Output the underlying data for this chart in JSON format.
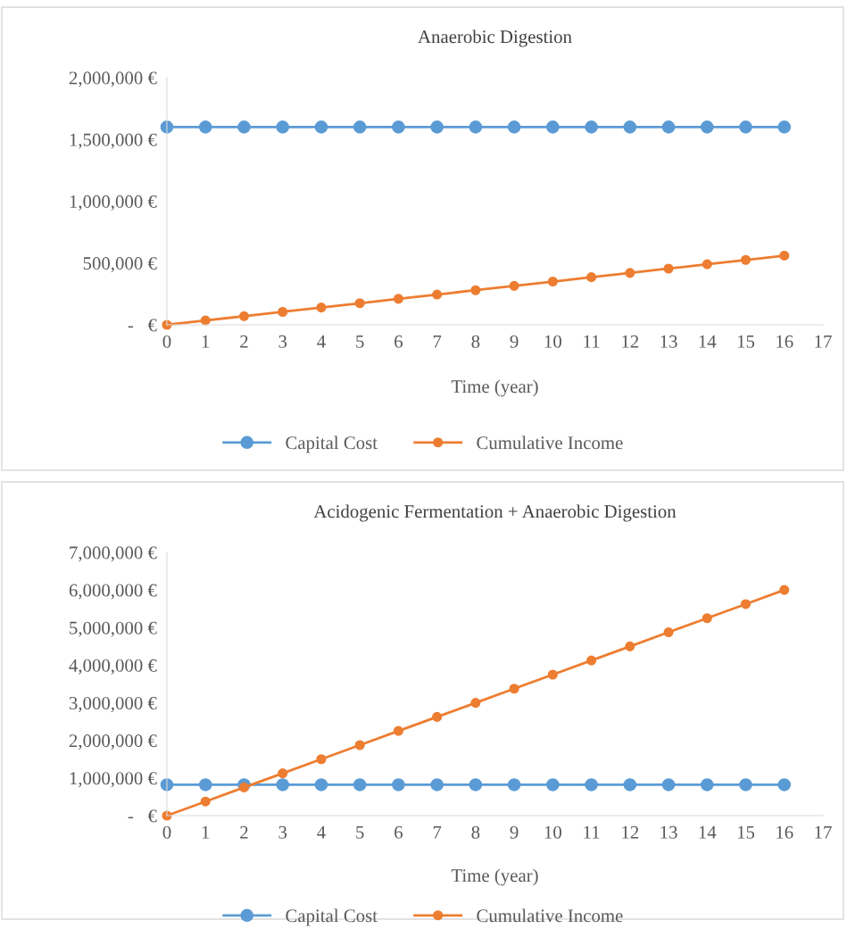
{
  "chart_data": [
    {
      "type": "line",
      "title": "Anaerobic Digestion",
      "xlabel": "Time (year)",
      "x": [
        0,
        1,
        2,
        3,
        4,
        5,
        6,
        7,
        8,
        9,
        10,
        11,
        12,
        13,
        14,
        15,
        16
      ],
      "series": [
        {
          "name": "Capital Cost",
          "color": "#5b9bd5",
          "values": [
            1600000,
            1600000,
            1600000,
            1600000,
            1600000,
            1600000,
            1600000,
            1600000,
            1600000,
            1600000,
            1600000,
            1600000,
            1600000,
            1600000,
            1600000,
            1600000,
            1600000
          ]
        },
        {
          "name": "Cumulative Income",
          "color": "#ed7d31",
          "values": [
            0,
            35000,
            70000,
            105000,
            140000,
            175000,
            210000,
            245000,
            280000,
            315000,
            350000,
            385000,
            420000,
            455000,
            490000,
            525000,
            560000
          ]
        }
      ],
      "xlim": [
        0,
        17
      ],
      "xticks": [
        0,
        1,
        2,
        3,
        4,
        5,
        6,
        7,
        8,
        9,
        10,
        11,
        12,
        13,
        14,
        15,
        16,
        17
      ],
      "ylim": [
        0,
        2000000
      ],
      "yticks": [
        {
          "value": 0,
          "label": "-   €"
        },
        {
          "value": 500000,
          "label": "500,000 €"
        },
        {
          "value": 1000000,
          "label": "1,000,000 €"
        },
        {
          "value": 1500000,
          "label": "1,500,000 €"
        },
        {
          "value": 2000000,
          "label": "2,000,000 €"
        }
      ],
      "grid": false,
      "legend": "bottom",
      "marker": "circle",
      "line_style": "solid"
    },
    {
      "type": "line",
      "title": "Acidogenic Fermentation + Anaerobic Digestion",
      "xlabel": "Time (year)",
      "x": [
        0,
        1,
        2,
        3,
        4,
        5,
        6,
        7,
        8,
        9,
        10,
        11,
        12,
        13,
        14,
        15,
        16
      ],
      "series": [
        {
          "name": "Capital Cost",
          "color": "#5b9bd5",
          "values": [
            820000,
            820000,
            820000,
            820000,
            820000,
            820000,
            820000,
            820000,
            820000,
            820000,
            820000,
            820000,
            820000,
            820000,
            820000,
            820000,
            820000
          ]
        },
        {
          "name": "Cumulative Income",
          "color": "#ed7d31",
          "values": [
            0,
            375000,
            750000,
            1125000,
            1500000,
            1875000,
            2250000,
            2625000,
            3000000,
            3375000,
            3750000,
            4125000,
            4500000,
            4875000,
            5250000,
            5625000,
            6000000
          ]
        }
      ],
      "xlim": [
        0,
        17
      ],
      "xticks": [
        0,
        1,
        2,
        3,
        4,
        5,
        6,
        7,
        8,
        9,
        10,
        11,
        12,
        13,
        14,
        15,
        16,
        17
      ],
      "ylim": [
        0,
        7000000
      ],
      "yticks": [
        {
          "value": 0,
          "label": "-   €"
        },
        {
          "value": 1000000,
          "label": "1,000,000 €"
        },
        {
          "value": 2000000,
          "label": "2,000,000 €"
        },
        {
          "value": 3000000,
          "label": "3,000,000 €"
        },
        {
          "value": 4000000,
          "label": "4,000,000 €"
        },
        {
          "value": 5000000,
          "label": "5,000,000 €"
        },
        {
          "value": 6000000,
          "label": "6,000,000 €"
        },
        {
          "value": 7000000,
          "label": "7,000,000 €"
        }
      ],
      "grid": false,
      "legend": "bottom",
      "marker": "circle",
      "line_style": "solid"
    }
  ]
}
